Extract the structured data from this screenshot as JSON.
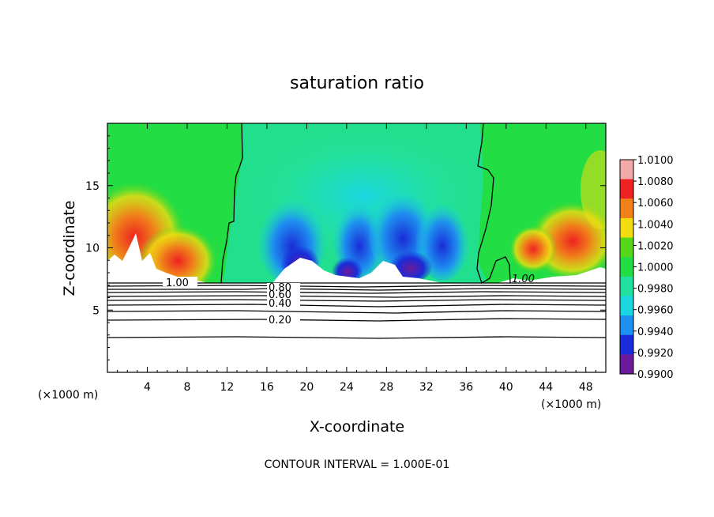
{
  "chart_data": {
    "type": "heatmap",
    "title": "saturation ratio",
    "xlabel": "X-coordinate",
    "ylabel": "Z-coordinate",
    "x_unit": "(×1000 m)",
    "xlim": [
      0,
      50
    ],
    "ylim": [
      0,
      20
    ],
    "x_ticks": [
      4,
      8,
      12,
      16,
      20,
      24,
      28,
      32,
      36,
      40,
      44,
      48
    ],
    "y_ticks": [
      5,
      10,
      15
    ],
    "colorbar": {
      "levels": [
        "1.0100",
        "1.0080",
        "1.0060",
        "1.0040",
        "1.0020",
        "1.0000",
        "0.9980",
        "0.9960",
        "0.9940",
        "0.9920",
        "0.9900"
      ],
      "colors": [
        "#f4a9a9",
        "#ee2222",
        "#f0801a",
        "#f2dd10",
        "#55d81a",
        "#22dd44",
        "#22e0a0",
        "#1ad6e0",
        "#1e90f0",
        "#1a2cd8",
        "#6a1a9a"
      ]
    },
    "contour_labels": [
      "1.00",
      "0.80",
      "0.60",
      "0.40",
      "0.20",
      "1.00"
    ],
    "contour_levels": [
      0.2,
      0.3,
      0.4,
      0.5,
      0.6,
      0.7,
      0.8,
      0.9,
      1.0
    ],
    "footer": "CONTOUR INTERVAL = 1.000E-01"
  }
}
